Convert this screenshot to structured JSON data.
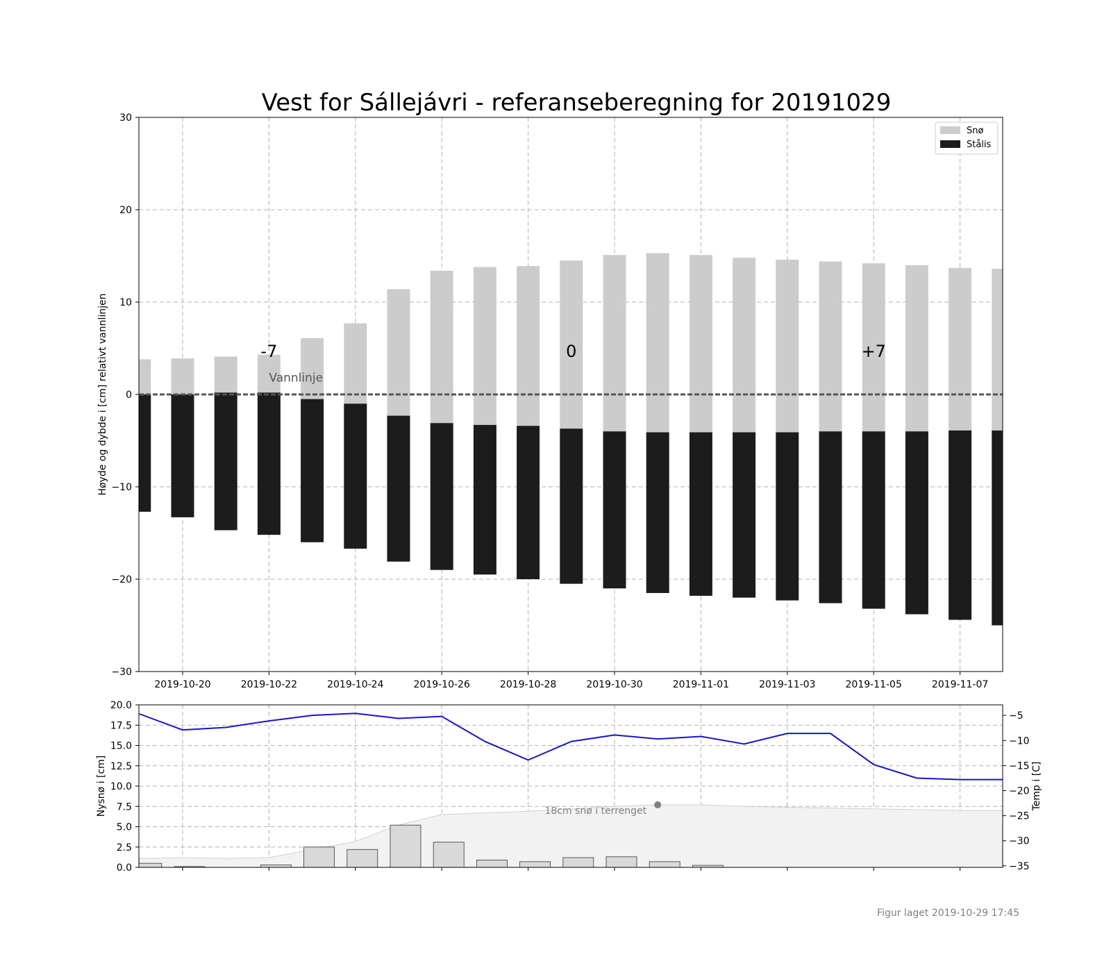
{
  "title": "Vest for Sállejávri - referanseberegning for 20191029",
  "footer": "Figur laget 2019-10-29 17:45",
  "colors": {
    "snow": "#cccccc",
    "ice": "#1c1c1c",
    "temp_line": "#1515cc",
    "new_snow_bar": "#d9d9d9",
    "terrain_fill": "#f2f2f2",
    "grid": "#b0b0b0",
    "waterline": "#555555"
  },
  "chart_data": [
    {
      "type": "bar",
      "stacked": "signed",
      "ylabel": "Høyde og dybde i [cm] relativt vannlinjen",
      "ylim": [
        -30,
        30
      ],
      "yticks": [
        30,
        20,
        10,
        0,
        -10,
        -20,
        -30
      ],
      "ytick_labels": [
        "30",
        "20",
        "10",
        "0",
        "−10",
        "−20",
        "−30"
      ],
      "x_dates": [
        "2019-10-19",
        "2019-10-20",
        "2019-10-21",
        "2019-10-22",
        "2019-10-23",
        "2019-10-24",
        "2019-10-25",
        "2019-10-26",
        "2019-10-27",
        "2019-10-28",
        "2019-10-29",
        "2019-10-30",
        "2019-10-31",
        "2019-11-01",
        "2019-11-02",
        "2019-11-03",
        "2019-11-04",
        "2019-11-05",
        "2019-11-06",
        "2019-11-07",
        "2019-11-08"
      ],
      "xticks": [
        "2019-10-20",
        "2019-10-22",
        "2019-10-24",
        "2019-10-26",
        "2019-10-28",
        "2019-10-30",
        "2019-11-01",
        "2019-11-03",
        "2019-11-05",
        "2019-11-07"
      ],
      "grid": true,
      "legend_position": "top-right",
      "series": [
        {
          "name": "Snø",
          "bottom": [
            0,
            0,
            0.2,
            0.2,
            -0.5,
            -1.0,
            -2.3,
            -3.1,
            -3.3,
            -3.4,
            -3.7,
            -4.0,
            -4.1,
            -4.1,
            -4.1,
            -4.1,
            -4.0,
            -4.0,
            -4.0,
            -3.9,
            -3.9
          ],
          "top": [
            3.8,
            3.9,
            4.1,
            4.3,
            6.1,
            7.7,
            11.4,
            13.4,
            13.8,
            13.9,
            14.5,
            15.1,
            15.3,
            15.1,
            14.8,
            14.6,
            14.4,
            14.2,
            14.0,
            13.7,
            13.6
          ]
        },
        {
          "name": "Stålis",
          "bottom": [
            -12.7,
            -13.3,
            -14.7,
            -15.2,
            -16.0,
            -16.7,
            -18.1,
            -19.0,
            -19.5,
            -20.0,
            -20.5,
            -21.0,
            -21.5,
            -21.8,
            -22.0,
            -22.3,
            -22.6,
            -23.2,
            -23.8,
            -24.4,
            -25.0
          ],
          "top": [
            0,
            0,
            0.2,
            0.2,
            -0.5,
            -1.0,
            -2.3,
            -3.1,
            -3.3,
            -3.4,
            -3.7,
            -4.0,
            -4.1,
            -4.1,
            -4.1,
            -4.1,
            -4.0,
            -4.0,
            -4.0,
            -3.9,
            -3.9
          ]
        }
      ],
      "annotations": [
        {
          "text": "-7",
          "x": "2019-10-22",
          "y": 4.6
        },
        {
          "text": "0",
          "x": "2019-10-29",
          "y": 4.6
        },
        {
          "text": "+7",
          "x": "2019-11-05",
          "y": 4.6
        },
        {
          "text": "Vannlinje",
          "x": "2019-10-22",
          "y": 1.4
        }
      ],
      "waterline_y": 0
    },
    {
      "type": "bar+line",
      "ylabel": "Nysnø i [cm]",
      "ylim": [
        0,
        20
      ],
      "yticks": [
        0,
        2.5,
        5,
        7.5,
        10,
        12.5,
        15,
        17.5,
        20
      ],
      "ytick_labels": [
        "0.0",
        "2.5",
        "5.0",
        "7.5",
        "10.0",
        "12.5",
        "15.0",
        "17.5",
        "20.0"
      ],
      "y2label": "Temp i [C]",
      "y2lim": [
        -35.3,
        -2.9
      ],
      "y2ticks": [
        -5,
        -10,
        -15,
        -20,
        -25,
        -30,
        -35
      ],
      "y2tick_labels": [
        "−5",
        "−10",
        "−15",
        "−20",
        "−25",
        "−30",
        "−35"
      ],
      "x_dates": [
        "2019-10-19",
        "2019-10-20",
        "2019-10-21",
        "2019-10-22",
        "2019-10-23",
        "2019-10-24",
        "2019-10-25",
        "2019-10-26",
        "2019-10-27",
        "2019-10-28",
        "2019-10-29",
        "2019-10-30",
        "2019-10-31",
        "2019-11-01",
        "2019-11-02",
        "2019-11-03",
        "2019-11-04",
        "2019-11-05",
        "2019-11-06",
        "2019-11-07",
        "2019-11-08"
      ],
      "new_snow_cm": [
        0.5,
        0.1,
        0,
        0.3,
        2.5,
        2.2,
        5.2,
        3.1,
        0.9,
        0.7,
        1.2,
        1.3,
        0.7,
        0.25,
        0,
        0,
        0,
        0,
        0,
        0,
        0
      ],
      "temperature_c": [
        -4.7,
        -7.9,
        -7.4,
        -6.1,
        -5.0,
        -4.6,
        -5.6,
        -5.2,
        -10.2,
        -13.9,
        -10.2,
        -8.9,
        -9.7,
        -9.2,
        -10.7,
        -8.6,
        -8.6,
        -14.8,
        -17.5,
        -17.8,
        -17.8
      ],
      "terrain_snow": [
        1.1,
        1.2,
        1.1,
        1.2,
        2.2,
        3.2,
        5.2,
        6.5,
        6.7,
        6.9,
        7.2,
        7.5,
        7.7,
        7.7,
        7.5,
        7.4,
        7.3,
        7.2,
        7.1,
        7.0,
        7.0
      ],
      "terrain_marker": {
        "x": "2019-10-31",
        "y": 7.7
      },
      "terrain_label": "18cm snø i terrenget",
      "grid": true
    }
  ]
}
